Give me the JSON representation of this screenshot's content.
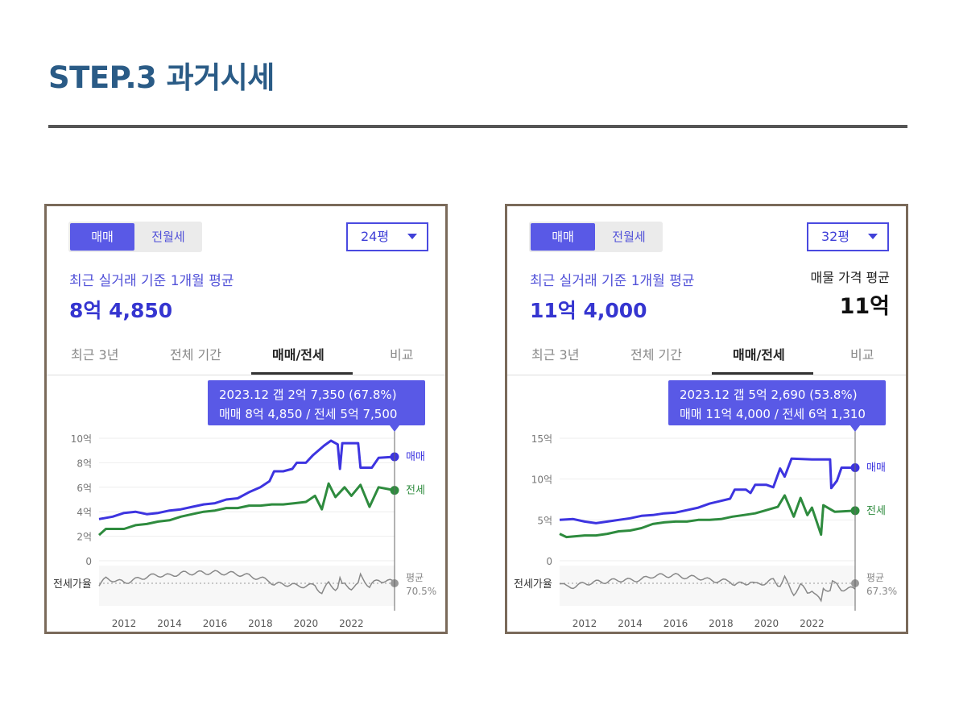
{
  "page": {
    "title": "STEP.3 과거시세"
  },
  "colors": {
    "sale": "#3d34e0",
    "jeonse": "#2e8b3e",
    "ratio": "#888888",
    "accent": "#5959e6"
  },
  "panels": [
    {
      "toggle": {
        "active": "매매",
        "inactive": "전월세"
      },
      "size_select": {
        "value": "24평",
        "icon": "caret-down-icon"
      },
      "subtitle": "최근 실거래 기준 1개월 평균",
      "price": "8억 4,850",
      "avg_label": "",
      "avg_value": "",
      "tabs": [
        "최근 3년",
        "전체 기간",
        "매매/전세",
        "비교"
      ],
      "active_tab": "매매/전세",
      "tooltip": {
        "line1": "2023.12  갭 2억 7,350 (67.8%)",
        "line2": "매매 8억 4,850 / 전세 5억 7,500"
      },
      "chart_data": {
        "type": "line",
        "x_ticks": [
          "2012",
          "2014",
          "2016",
          "2018",
          "2020",
          "2022"
        ],
        "y_ticks": [
          "0",
          "2억",
          "4억",
          "6억",
          "8억",
          "10억"
        ],
        "ylim": [
          0,
          10
        ],
        "series": [
          {
            "name": "매매",
            "points": [
              [
                2010.9,
                3.4
              ],
              [
                2011.5,
                3.6
              ],
              [
                2012,
                3.9
              ],
              [
                2012.5,
                4.0
              ],
              [
                2013,
                3.8
              ],
              [
                2013.5,
                3.9
              ],
              [
                2014,
                4.1
              ],
              [
                2014.5,
                4.2
              ],
              [
                2015,
                4.4
              ],
              [
                2015.5,
                4.6
              ],
              [
                2016,
                4.7
              ],
              [
                2016.5,
                5.0
              ],
              [
                2017,
                5.1
              ],
              [
                2017.5,
                5.6
              ],
              [
                2018,
                6.0
              ],
              [
                2018.4,
                6.5
              ],
              [
                2018.6,
                7.3
              ],
              [
                2019,
                7.3
              ],
              [
                2019.4,
                7.5
              ],
              [
                2019.6,
                8.0
              ],
              [
                2020,
                8.0
              ],
              [
                2020.3,
                8.6
              ],
              [
                2020.8,
                9.4
              ],
              [
                2021.1,
                9.8
              ],
              [
                2021.4,
                9.5
              ],
              [
                2021.5,
                7.5
              ],
              [
                2021.6,
                9.6
              ],
              [
                2022.3,
                9.6
              ],
              [
                2022.4,
                7.6
              ],
              [
                2022.9,
                7.6
              ],
              [
                2023.2,
                8.4
              ],
              [
                2023.9,
                8.485
              ]
            ]
          },
          {
            "name": "전세",
            "points": [
              [
                2010.9,
                2.1
              ],
              [
                2011.2,
                2.6
              ],
              [
                2012,
                2.6
              ],
              [
                2012.5,
                2.9
              ],
              [
                2013,
                3.0
              ],
              [
                2013.5,
                3.2
              ],
              [
                2014,
                3.3
              ],
              [
                2014.5,
                3.6
              ],
              [
                2015,
                3.8
              ],
              [
                2015.5,
                4.0
              ],
              [
                2016,
                4.1
              ],
              [
                2016.5,
                4.3
              ],
              [
                2017,
                4.3
              ],
              [
                2017.5,
                4.5
              ],
              [
                2018,
                4.5
              ],
              [
                2018.5,
                4.6
              ],
              [
                2019,
                4.6
              ],
              [
                2019.5,
                4.7
              ],
              [
                2020,
                4.8
              ],
              [
                2020.4,
                5.3
              ],
              [
                2020.7,
                4.2
              ],
              [
                2021,
                6.3
              ],
              [
                2021.3,
                5.2
              ],
              [
                2021.7,
                6.0
              ],
              [
                2022,
                5.3
              ],
              [
                2022.4,
                6.2
              ],
              [
                2022.8,
                4.4
              ],
              [
                2023.2,
                6.0
              ],
              [
                2023.9,
                5.75
              ]
            ]
          }
        ],
        "ratio_label": "전세가율",
        "avg_label": "평균",
        "avg_value": "70.5%",
        "end_labels": {
          "sale": "매매",
          "jeonse": "전세"
        }
      }
    },
    {
      "toggle": {
        "active": "매매",
        "inactive": "전월세"
      },
      "size_select": {
        "value": "32평",
        "icon": "caret-down-icon"
      },
      "subtitle": "최근 실거래 기준 1개월 평균",
      "price": "11억 4,000",
      "avg_label": "매물 가격 평균",
      "avg_value": "11억",
      "tabs": [
        "최근 3년",
        "전체 기간",
        "매매/전세",
        "비교"
      ],
      "active_tab": "매매/전세",
      "tooltip": {
        "line1": "2023.12  갭 5억 2,690 (53.8%)",
        "line2": "매매 11억 4,000 / 전세 6억 1,310"
      },
      "chart_data": {
        "type": "line",
        "x_ticks": [
          "2012",
          "2014",
          "2016",
          "2018",
          "2020",
          "2022"
        ],
        "y_ticks": [
          "0",
          "5억",
          "10억",
          "15억"
        ],
        "ylim": [
          0,
          15
        ],
        "series": [
          {
            "name": "매매",
            "points": [
              [
                2010.9,
                5.0
              ],
              [
                2011.5,
                5.1
              ],
              [
                2012,
                4.8
              ],
              [
                2012.5,
                4.6
              ],
              [
                2013,
                4.8
              ],
              [
                2013.5,
                5.0
              ],
              [
                2014,
                5.2
              ],
              [
                2014.5,
                5.5
              ],
              [
                2015,
                5.6
              ],
              [
                2015.5,
                5.8
              ],
              [
                2016,
                5.9
              ],
              [
                2016.5,
                6.2
              ],
              [
                2017,
                6.5
              ],
              [
                2017.5,
                7.0
              ],
              [
                2018.4,
                7.6
              ],
              [
                2018.6,
                8.7
              ],
              [
                2019.1,
                8.7
              ],
              [
                2019.3,
                8.3
              ],
              [
                2019.5,
                9.3
              ],
              [
                2020,
                9.3
              ],
              [
                2020.3,
                9.0
              ],
              [
                2020.6,
                11.3
              ],
              [
                2020.8,
                10.3
              ],
              [
                2021.1,
                12.5
              ],
              [
                2022,
                12.4
              ],
              [
                2022.8,
                12.4
              ],
              [
                2022.85,
                8.9
              ],
              [
                2023.1,
                9.8
              ],
              [
                2023.3,
                11.4
              ],
              [
                2023.9,
                11.4
              ]
            ]
          },
          {
            "name": "전세",
            "points": [
              [
                2010.9,
                3.3
              ],
              [
                2011.2,
                2.9
              ],
              [
                2012,
                3.1
              ],
              [
                2012.5,
                3.1
              ],
              [
                2013,
                3.3
              ],
              [
                2013.5,
                3.6
              ],
              [
                2014,
                3.7
              ],
              [
                2014.5,
                4.0
              ],
              [
                2015,
                4.5
              ],
              [
                2015.5,
                4.7
              ],
              [
                2016,
                4.8
              ],
              [
                2016.5,
                4.8
              ],
              [
                2017,
                5.0
              ],
              [
                2017.5,
                5.0
              ],
              [
                2018,
                5.1
              ],
              [
                2018.5,
                5.4
              ],
              [
                2019,
                5.6
              ],
              [
                2019.5,
                5.8
              ],
              [
                2020,
                6.2
              ],
              [
                2020.5,
                6.6
              ],
              [
                2020.8,
                8.0
              ],
              [
                2021.2,
                5.4
              ],
              [
                2021.5,
                7.7
              ],
              [
                2021.8,
                5.6
              ],
              [
                2022,
                6.5
              ],
              [
                2022.4,
                3.2
              ],
              [
                2022.5,
                6.8
              ],
              [
                2023,
                6.0
              ],
              [
                2023.9,
                6.13
              ]
            ]
          }
        ],
        "ratio_label": "전세가율",
        "avg_label": "평균",
        "avg_value": "67.3%",
        "end_labels": {
          "sale": "매매",
          "jeonse": "전세"
        }
      }
    }
  ]
}
